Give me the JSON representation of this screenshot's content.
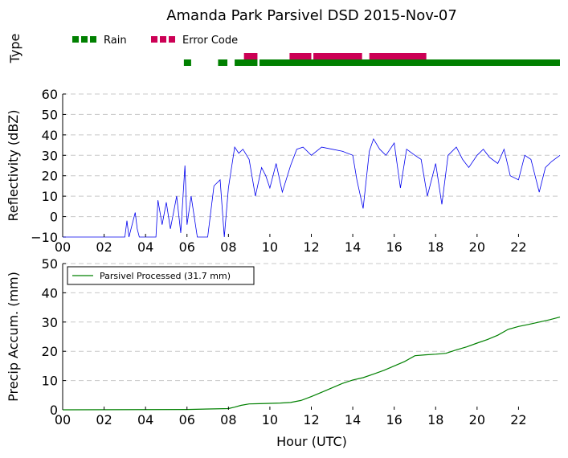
{
  "chart_data": [
    {
      "type": "timeline",
      "title": "Amanda Park Parsivel DSD 2015-Nov-07",
      "ylabel": "Type",
      "xlim": [
        0,
        24
      ],
      "legend": {
        "position": "top-left",
        "entries": [
          {
            "label": "Rain",
            "color": "#008000"
          },
          {
            "label": "Error Code",
            "color": "#cc0055"
          }
        ]
      },
      "series": [
        {
          "name": "Rain",
          "color": "#008000",
          "intervals": [
            [
              5.85,
              6.2
            ],
            [
              7.5,
              7.95
            ],
            [
              8.3,
              9.4
            ],
            [
              9.5,
              24.0
            ]
          ]
        },
        {
          "name": "Error Code",
          "color": "#cc0055",
          "intervals": [
            [
              8.75,
              9.4
            ],
            [
              10.95,
              12.0
            ],
            [
              12.1,
              14.45
            ],
            [
              14.8,
              17.55
            ]
          ]
        }
      ]
    },
    {
      "type": "line",
      "ylabel": "Reflectivity (dBZ)",
      "xlim": [
        0,
        24
      ],
      "ylim": [
        -10,
        60
      ],
      "yticks": [
        -10,
        0,
        10,
        20,
        30,
        40,
        50,
        60
      ],
      "xticks": [
        "00",
        "02",
        "04",
        "06",
        "08",
        "10",
        "12",
        "14",
        "16",
        "18",
        "20",
        "22"
      ],
      "grid": "y-dashed",
      "series": [
        {
          "color": "#0000ee",
          "x": [
            0,
            3.0,
            3.1,
            3.2,
            3.5,
            3.6,
            3.7,
            4.5,
            4.6,
            4.8,
            5.0,
            5.2,
            5.5,
            5.7,
            5.9,
            6.0,
            6.2,
            6.5,
            6.8,
            7.0,
            7.3,
            7.6,
            7.8,
            8.0,
            8.3,
            8.5,
            8.7,
            9.0,
            9.3,
            9.6,
            9.8,
            10.0,
            10.3,
            10.6,
            11.0,
            11.3,
            11.6,
            12.0,
            12.5,
            13.0,
            13.5,
            14.0,
            14.2,
            14.5,
            14.8,
            15.0,
            15.3,
            15.6,
            16.0,
            16.3,
            16.6,
            17.0,
            17.3,
            17.6,
            18.0,
            18.3,
            18.6,
            19.0,
            19.3,
            19.6,
            20.0,
            20.3,
            20.6,
            21.0,
            21.3,
            21.6,
            22.0,
            22.3,
            22.6,
            23.0,
            23.3,
            23.6,
            24.0
          ],
          "y": [
            -10,
            -10,
            -2,
            -10,
            2,
            -6,
            -10,
            -10,
            8,
            -4,
            7,
            -6,
            10,
            -8,
            25,
            -4,
            10,
            -10,
            -10,
            -10,
            15,
            18,
            -10,
            14,
            34,
            31,
            33,
            28,
            10,
            24,
            20,
            14,
            26,
            12,
            25,
            33,
            34,
            30,
            34,
            33,
            32,
            30,
            18,
            4,
            32,
            38,
            33,
            30,
            36,
            14,
            33,
            30,
            28,
            10,
            26,
            6,
            30,
            34,
            28,
            24,
            30,
            33,
            29,
            26,
            33,
            20,
            18,
            30,
            28,
            12,
            24,
            27,
            30
          ]
        }
      ]
    },
    {
      "type": "line",
      "ylabel": "Precip Accum. (mm)",
      "xlabel": "Hour (UTC)",
      "xlim": [
        0,
        24
      ],
      "ylim": [
        0,
        50
      ],
      "yticks": [
        0,
        10,
        20,
        30,
        40,
        50
      ],
      "xticks": [
        "00",
        "02",
        "04",
        "06",
        "08",
        "10",
        "12",
        "14",
        "16",
        "18",
        "20",
        "22"
      ],
      "grid": "y-dashed",
      "legend": {
        "position": "top-left",
        "entries": [
          {
            "label": "Parsivel Processed (31.7 mm)",
            "color": "#008000"
          }
        ]
      },
      "series": [
        {
          "name": "Parsivel Processed (31.7 mm)",
          "color": "#008000",
          "x": [
            0,
            6.0,
            8.0,
            8.3,
            8.6,
            9.0,
            9.5,
            10.0,
            10.5,
            11.0,
            11.5,
            12.0,
            12.5,
            13.0,
            13.5,
            14.0,
            14.5,
            15.0,
            15.5,
            16.0,
            16.5,
            17.0,
            17.5,
            18.0,
            18.5,
            19.0,
            19.5,
            20.0,
            20.5,
            21.0,
            21.5,
            22.0,
            22.5,
            23.0,
            23.5,
            24.0
          ],
          "y": [
            0,
            0.1,
            0.4,
            0.9,
            1.5,
            2.0,
            2.1,
            2.2,
            2.3,
            2.5,
            3.2,
            4.5,
            6.0,
            7.5,
            9.0,
            10.2,
            11.0,
            12.2,
            13.5,
            15.0,
            16.5,
            18.5,
            18.8,
            19.0,
            19.3,
            20.5,
            21.5,
            22.8,
            24.0,
            25.5,
            27.5,
            28.5,
            29.2,
            30.0,
            30.8,
            31.7
          ]
        }
      ]
    }
  ],
  "panel1": {
    "title": "Amanda Park Parsivel DSD 2015-Nov-07",
    "ylabel": "Type",
    "legend_rain": "Rain",
    "legend_error": "Error Code"
  },
  "panel2": {
    "ylabel": "Reflectivity (dBZ)",
    "ytick_labels": [
      "−10",
      "0",
      "10",
      "20",
      "30",
      "40",
      "50",
      "60"
    ]
  },
  "panel3": {
    "ylabel": "Precip Accum. (mm)",
    "xlabel": "Hour (UTC)",
    "legend_label": "Parsivel Processed (31.7 mm)",
    "ytick_labels": [
      "0",
      "10",
      "20",
      "30",
      "40",
      "50"
    ]
  },
  "xtick_labels": [
    "00",
    "02",
    "04",
    "06",
    "08",
    "10",
    "12",
    "14",
    "16",
    "18",
    "20",
    "22"
  ],
  "colors": {
    "rain": "#008000",
    "error": "#cc0055",
    "reflectivity": "#0000ee",
    "accumulation": "#008000",
    "grid": "#c8c8c8"
  }
}
